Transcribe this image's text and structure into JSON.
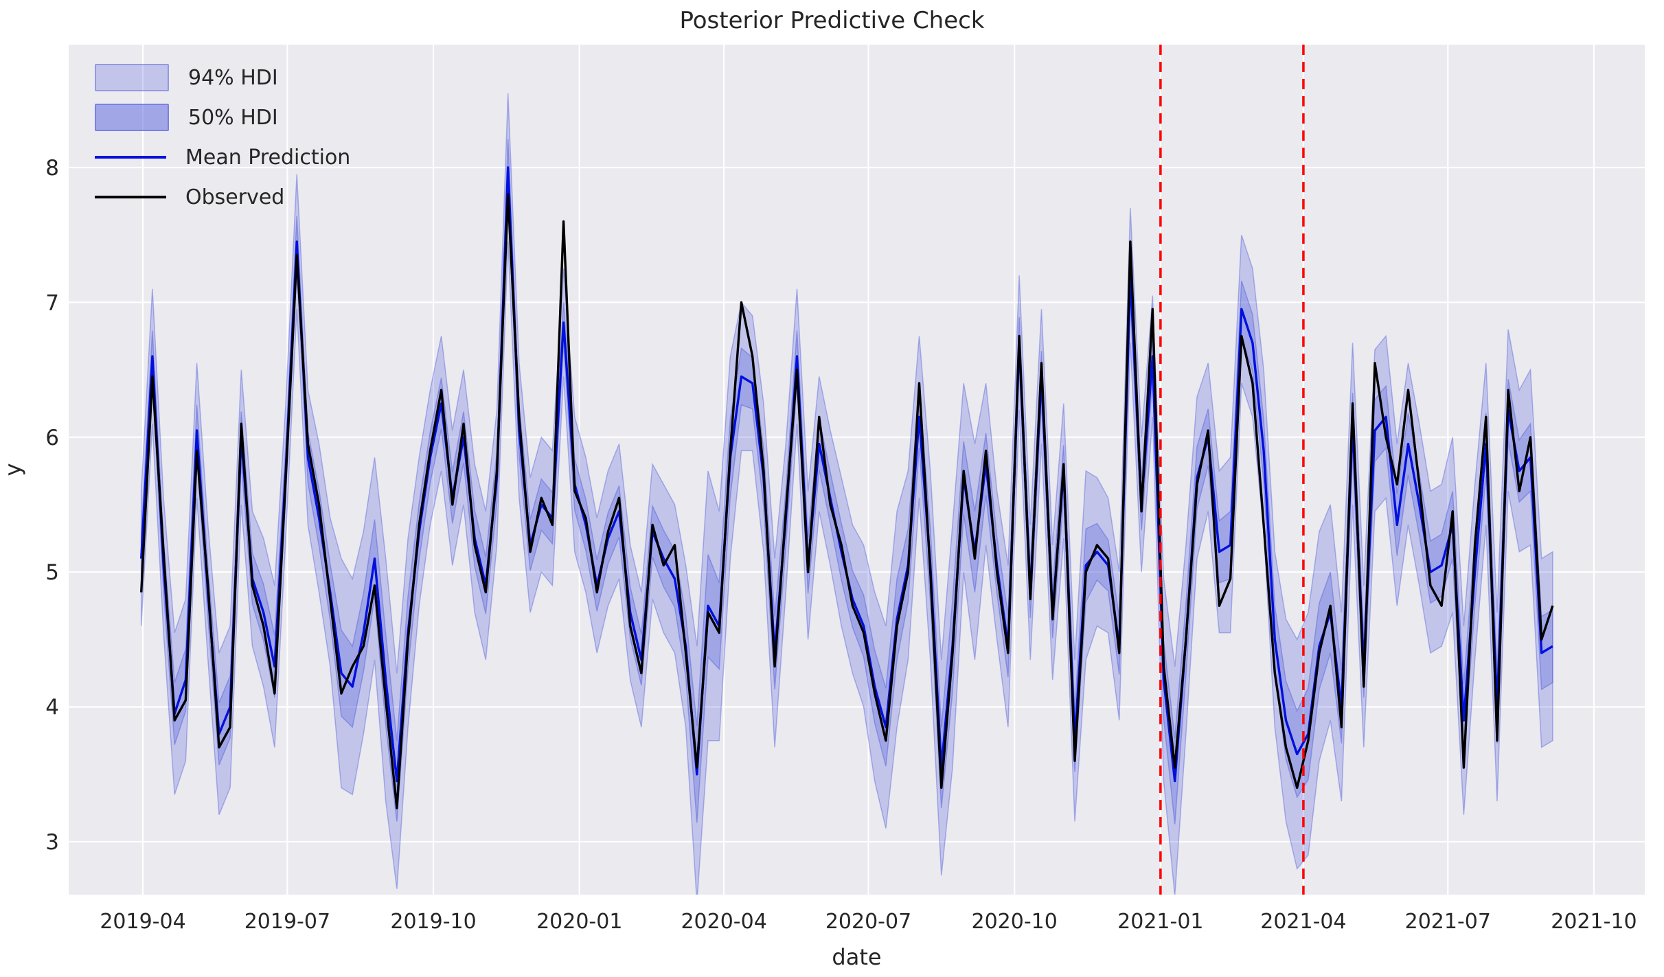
{
  "figure": {
    "title": "Posterior Predictive Check",
    "xlabel": "date",
    "ylabel": "y"
  },
  "legend": {
    "hdi94_label": "94% HDI",
    "hdi50_label": "50% HDI",
    "mean_label": "Mean Prediction",
    "observed_label": "Observed"
  },
  "colors": {
    "axes_background": "#eaeaef",
    "grid": "#ffffff",
    "observed_line": "#000000",
    "mean_line": "#0010dd",
    "band_fill": "#5a64dc",
    "split_line": "#ff0000",
    "text": "#262626"
  },
  "chart_data": {
    "type": "line",
    "title": "Posterior Predictive Check",
    "xlabel": "date",
    "ylabel": "y",
    "grid": true,
    "legend_position": "upper left",
    "y_ticks": [
      3,
      4,
      5,
      6,
      7,
      8
    ],
    "ylim": [
      2.61,
      8.91
    ],
    "x_ticks": [
      {
        "label": "2019-04",
        "day": 0
      },
      {
        "label": "2019-07",
        "day": 91
      },
      {
        "label": "2019-10",
        "day": 183
      },
      {
        "label": "2020-01",
        "day": 275
      },
      {
        "label": "2020-04",
        "day": 366
      },
      {
        "label": "2020-07",
        "day": 457
      },
      {
        "label": "2020-10",
        "day": 549
      },
      {
        "label": "2021-01",
        "day": 641
      },
      {
        "label": "2021-04",
        "day": 731
      },
      {
        "label": "2021-07",
        "day": 822
      },
      {
        "label": "2021-10",
        "day": 914
      }
    ],
    "vlines_days": [
      641,
      731
    ],
    "dates": [
      "2019-03-31",
      "2019-04-07",
      "2019-04-14",
      "2019-04-21",
      "2019-04-28",
      "2019-05-05",
      "2019-05-12",
      "2019-05-19",
      "2019-05-26",
      "2019-06-02",
      "2019-06-09",
      "2019-06-16",
      "2019-06-23",
      "2019-06-30",
      "2019-07-07",
      "2019-07-14",
      "2019-07-21",
      "2019-07-28",
      "2019-08-04",
      "2019-08-11",
      "2019-08-18",
      "2019-08-25",
      "2019-09-01",
      "2019-09-08",
      "2019-09-15",
      "2019-09-22",
      "2019-09-29",
      "2019-10-06",
      "2019-10-13",
      "2019-10-20",
      "2019-10-27",
      "2019-11-03",
      "2019-11-10",
      "2019-11-17",
      "2019-11-24",
      "2019-12-01",
      "2019-12-08",
      "2019-12-15",
      "2019-12-22",
      "2019-12-29",
      "2020-01-05",
      "2020-01-12",
      "2020-01-19",
      "2020-01-26",
      "2020-02-02",
      "2020-02-09",
      "2020-02-16",
      "2020-02-23",
      "2020-03-01",
      "2020-03-08",
      "2020-03-15",
      "2020-03-22",
      "2020-03-29",
      "2020-04-05",
      "2020-04-12",
      "2020-04-19",
      "2020-04-26",
      "2020-05-03",
      "2020-05-10",
      "2020-05-17",
      "2020-05-24",
      "2020-05-31",
      "2020-06-07",
      "2020-06-14",
      "2020-06-21",
      "2020-06-28",
      "2020-07-05",
      "2020-07-12",
      "2020-07-19",
      "2020-07-26",
      "2020-08-02",
      "2020-08-09",
      "2020-08-16",
      "2020-08-23",
      "2020-08-30",
      "2020-09-06",
      "2020-09-13",
      "2020-09-20",
      "2020-09-27",
      "2020-10-04",
      "2020-10-11",
      "2020-10-18",
      "2020-10-25",
      "2020-11-01",
      "2020-11-08",
      "2020-11-15",
      "2020-11-22",
      "2020-11-29",
      "2020-12-06",
      "2020-12-13",
      "2020-12-20",
      "2020-12-27",
      "2021-01-03",
      "2021-01-10",
      "2021-01-17",
      "2021-01-24",
      "2021-01-31",
      "2021-02-07",
      "2021-02-14",
      "2021-02-21",
      "2021-02-28",
      "2021-03-07",
      "2021-03-14",
      "2021-03-21",
      "2021-03-28",
      "2021-04-04",
      "2021-04-11",
      "2021-04-18",
      "2021-04-25",
      "2021-05-02",
      "2021-05-09",
      "2021-05-16",
      "2021-05-23",
      "2021-05-30",
      "2021-06-06",
      "2021-06-13",
      "2021-06-20",
      "2021-06-27",
      "2021-07-04",
      "2021-07-11",
      "2021-07-18",
      "2021-07-25",
      "2021-08-01",
      "2021-08-08",
      "2021-08-15",
      "2021-08-22",
      "2021-08-29",
      "2021-09-05"
    ],
    "observed": [
      4.85,
      6.45,
      5.15,
      3.9,
      4.05,
      5.9,
      4.9,
      3.7,
      3.85,
      6.1,
      4.9,
      4.6,
      4.1,
      5.7,
      7.35,
      5.95,
      5.5,
      4.8,
      4.1,
      4.3,
      4.45,
      4.9,
      4.05,
      3.25,
      4.5,
      5.35,
      5.9,
      6.35,
      5.5,
      6.1,
      5.2,
      4.85,
      5.75,
      7.8,
      6.15,
      5.15,
      5.55,
      5.35,
      7.6,
      5.6,
      5.4,
      4.85,
      5.3,
      5.55,
      4.6,
      4.25,
      5.35,
      5.05,
      5.2,
      4.4,
      3.55,
      4.7,
      4.55,
      5.9,
      7.0,
      6.6,
      5.75,
      4.3,
      5.45,
      6.5,
      5.0,
      6.15,
      5.5,
      5.2,
      4.75,
      4.55,
      4.1,
      3.75,
      4.6,
      5.0,
      6.4,
      5.0,
      3.4,
      4.4,
      5.75,
      5.1,
      5.9,
      5.0,
      4.4,
      6.75,
      4.8,
      6.55,
      4.65,
      5.8,
      3.6,
      5.0,
      5.2,
      5.1,
      4.4,
      7.45,
      5.45,
      6.95,
      4.3,
      3.55,
      4.5,
      5.65,
      6.05,
      4.75,
      4.95,
      6.75,
      6.4,
      5.35,
      4.25,
      3.7,
      3.4,
      3.75,
      4.4,
      4.75,
      3.85,
      6.25,
      4.15,
      6.55,
      6.0,
      5.65,
      6.35,
      5.65,
      4.9,
      4.75,
      5.45,
      3.55,
      5.2,
      6.15,
      3.75,
      6.35,
      5.6,
      6.0,
      4.5,
      4.75
    ],
    "mean": [
      5.1,
      6.6,
      5.05,
      3.95,
      4.2,
      6.05,
      4.85,
      3.8,
      4.0,
      6.0,
      4.95,
      4.7,
      4.3,
      5.75,
      7.45,
      5.85,
      5.4,
      4.85,
      4.25,
      4.15,
      4.55,
      5.1,
      4.2,
      3.45,
      4.55,
      5.3,
      5.85,
      6.25,
      5.55,
      6.0,
      5.25,
      4.9,
      5.7,
      8.0,
      6.05,
      5.2,
      5.5,
      5.4,
      6.85,
      5.65,
      5.35,
      4.9,
      5.25,
      5.45,
      4.7,
      4.35,
      5.3,
      5.1,
      4.95,
      4.45,
      3.5,
      4.75,
      4.6,
      5.85,
      6.45,
      6.4,
      5.7,
      4.4,
      5.4,
      6.6,
      5.05,
      5.95,
      5.55,
      5.15,
      4.8,
      4.6,
      4.15,
      3.85,
      4.65,
      5.05,
      6.15,
      5.05,
      3.55,
      4.45,
      5.7,
      5.15,
      5.8,
      5.05,
      4.45,
      6.7,
      4.85,
      6.45,
      4.7,
      5.75,
      3.75,
      5.05,
      5.15,
      5.05,
      4.45,
      7.2,
      5.5,
      6.6,
      4.2,
      3.45,
      4.5,
      5.7,
      6.0,
      5.15,
      5.2,
      6.95,
      6.7,
      5.9,
      4.5,
      3.9,
      3.65,
      3.8,
      4.45,
      4.7,
      4.0,
      6.1,
      4.3,
      6.05,
      6.15,
      5.35,
      5.95,
      5.5,
      5.0,
      5.05,
      5.35,
      3.9,
      5.0,
      5.95,
      4.0,
      6.2,
      5.75,
      5.85,
      4.4,
      4.45
    ],
    "hdi94_half": [
      0.5,
      0.5,
      0.5,
      0.6,
      0.6,
      0.5,
      0.5,
      0.6,
      0.6,
      0.5,
      0.5,
      0.55,
      0.6,
      0.5,
      0.5,
      0.5,
      0.55,
      0.55,
      0.85,
      0.8,
      0.75,
      0.75,
      0.9,
      0.8,
      0.7,
      0.55,
      0.5,
      0.5,
      0.5,
      0.5,
      0.55,
      0.55,
      0.5,
      0.55,
      0.5,
      0.5,
      0.5,
      0.5,
      0.4,
      0.5,
      0.5,
      0.5,
      0.5,
      0.5,
      0.5,
      0.5,
      0.5,
      0.55,
      0.55,
      0.6,
      0.95,
      1.0,
      0.85,
      0.75,
      0.55,
      0.5,
      0.55,
      0.7,
      0.55,
      0.5,
      0.55,
      0.5,
      0.5,
      0.55,
      0.55,
      0.6,
      0.7,
      0.75,
      0.8,
      0.7,
      0.6,
      0.7,
      0.8,
      0.9,
      0.7,
      0.8,
      0.6,
      0.55,
      0.6,
      0.5,
      0.5,
      0.5,
      0.5,
      0.5,
      0.6,
      0.7,
      0.55,
      0.5,
      0.55,
      0.5,
      0.5,
      0.45,
      0.75,
      0.85,
      0.7,
      0.6,
      0.55,
      0.6,
      0.65,
      0.55,
      0.55,
      0.6,
      0.65,
      0.75,
      0.85,
      0.9,
      0.85,
      0.8,
      0.7,
      0.6,
      0.6,
      0.6,
      0.6,
      0.6,
      0.6,
      0.6,
      0.6,
      0.6,
      0.65,
      0.7,
      0.65,
      0.6,
      0.7,
      0.6,
      0.6,
      0.65,
      0.7,
      0.7
    ],
    "hdi50_half": [
      0.19,
      0.19,
      0.19,
      0.23,
      0.23,
      0.19,
      0.19,
      0.23,
      0.23,
      0.19,
      0.19,
      0.21,
      0.23,
      0.19,
      0.19,
      0.19,
      0.21,
      0.21,
      0.32,
      0.3,
      0.29,
      0.29,
      0.34,
      0.3,
      0.27,
      0.21,
      0.19,
      0.19,
      0.19,
      0.19,
      0.21,
      0.21,
      0.19,
      0.21,
      0.19,
      0.19,
      0.19,
      0.19,
      0.15,
      0.19,
      0.19,
      0.19,
      0.19,
      0.19,
      0.19,
      0.19,
      0.19,
      0.21,
      0.21,
      0.23,
      0.36,
      0.38,
      0.32,
      0.29,
      0.21,
      0.19,
      0.21,
      0.27,
      0.21,
      0.19,
      0.21,
      0.19,
      0.19,
      0.21,
      0.21,
      0.23,
      0.27,
      0.29,
      0.3,
      0.27,
      0.23,
      0.27,
      0.3,
      0.34,
      0.27,
      0.3,
      0.23,
      0.21,
      0.23,
      0.19,
      0.19,
      0.19,
      0.19,
      0.19,
      0.23,
      0.27,
      0.21,
      0.19,
      0.21,
      0.19,
      0.19,
      0.17,
      0.29,
      0.32,
      0.27,
      0.23,
      0.21,
      0.23,
      0.25,
      0.21,
      0.21,
      0.23,
      0.25,
      0.29,
      0.32,
      0.34,
      0.32,
      0.3,
      0.27,
      0.23,
      0.23,
      0.23,
      0.23,
      0.23,
      0.23,
      0.23,
      0.23,
      0.23,
      0.25,
      0.27,
      0.25,
      0.23,
      0.27,
      0.23,
      0.23,
      0.25,
      0.27,
      0.27
    ]
  }
}
